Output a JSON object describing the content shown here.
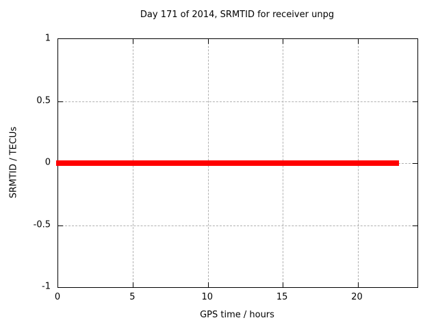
{
  "chart_data": {
    "type": "line",
    "title": "Day 171 of 2014, SRMTID for receiver unpg",
    "xlabel": "GPS time / hours",
    "ylabel": "SRMTID / TECUs",
    "xlim": [
      0,
      24
    ],
    "ylim": [
      -1,
      1
    ],
    "xticks": [
      {
        "value": 0,
        "label": "0"
      },
      {
        "value": 5,
        "label": "5"
      },
      {
        "value": 10,
        "label": "10"
      },
      {
        "value": 15,
        "label": "15"
      },
      {
        "value": 20,
        "label": "20"
      }
    ],
    "yticks": [
      {
        "value": 1,
        "label": "1"
      },
      {
        "value": 0.5,
        "label": "0.5"
      },
      {
        "value": 0,
        "label": "0"
      },
      {
        "value": -0.5,
        "label": "-0.5"
      },
      {
        "value": -1,
        "label": "-1"
      }
    ],
    "grid": true,
    "legend": "none",
    "series": [
      {
        "name": "SRMTID",
        "color": "#ff0000",
        "x": [
          0,
          22.75
        ],
        "y": [
          0,
          0
        ]
      }
    ]
  },
  "colors": {
    "line": "#ff0000",
    "grid": "#b0b0b0",
    "axis": "#000000",
    "background": "#ffffff"
  }
}
